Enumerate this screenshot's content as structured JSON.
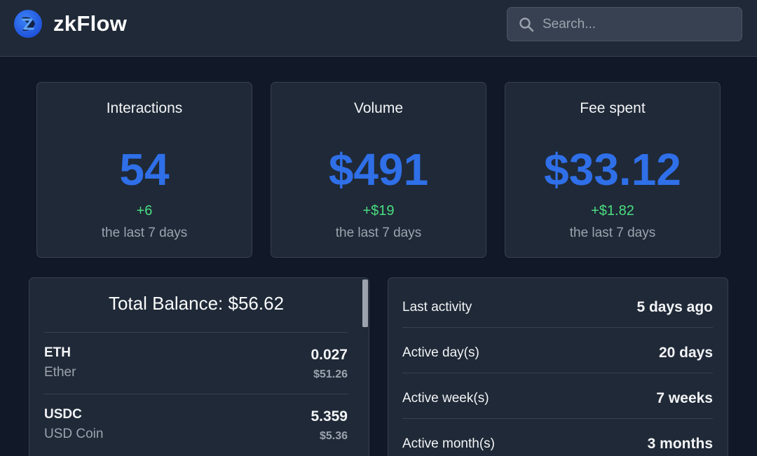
{
  "header": {
    "logo_text": "zkFlow",
    "search_placeholder": "Search..."
  },
  "stats": [
    {
      "title": "Interactions",
      "value": "54",
      "delta": "+6",
      "period": "the last 7 days"
    },
    {
      "title": "Volume",
      "value": "$491",
      "delta": "+$19",
      "period": "the last 7 days"
    },
    {
      "title": "Fee spent",
      "value": "$33.12",
      "delta": "+$1.82",
      "period": "the last 7 days"
    }
  ],
  "balance": {
    "title": "Total Balance: $56.62",
    "tokens": [
      {
        "symbol": "ETH",
        "name": "Ether",
        "amount": "0.027",
        "usd": "$51.26"
      },
      {
        "symbol": "USDC",
        "name": "USD Coin",
        "amount": "5.359",
        "usd": "$5.36"
      }
    ]
  },
  "activity": [
    {
      "label": "Last activity",
      "value": "5 days ago"
    },
    {
      "label": "Active day(s)",
      "value": "20 days"
    },
    {
      "label": "Active week(s)",
      "value": "7 weeks"
    },
    {
      "label": "Active month(s)",
      "value": "3 months"
    }
  ],
  "colors": {
    "accent": "#2f6fe8",
    "positive": "#4ade80",
    "background": "#111827",
    "card": "#1f2937"
  }
}
